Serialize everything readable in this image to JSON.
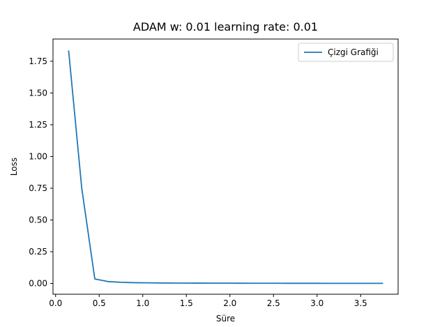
{
  "chart_data": {
    "type": "line",
    "title": "ADAM w: 0.01 learning rate: 0.01",
    "xlabel": "Süre",
    "ylabel": "Loss",
    "xlim": [
      -0.03,
      3.93
    ],
    "ylim": [
      -0.085,
      1.925
    ],
    "xticks": [
      0.0,
      0.5,
      1.0,
      1.5,
      2.0,
      2.5,
      3.0,
      3.5
    ],
    "xtick_labels": [
      "0.0",
      "0.5",
      "1.0",
      "1.5",
      "2.0",
      "2.5",
      "3.0",
      "3.5"
    ],
    "yticks": [
      0.0,
      0.25,
      0.5,
      0.75,
      1.0,
      1.25,
      1.5,
      1.75
    ],
    "ytick_labels": [
      "0.00",
      "0.25",
      "0.50",
      "0.75",
      "1.00",
      "1.25",
      "1.50",
      "1.75"
    ],
    "grid": false,
    "legend_position": "top-right",
    "series": [
      {
        "name": "Çizgi Grafiği",
        "color": "#1f77b4",
        "x": [
          0.15,
          0.3,
          0.45,
          0.6,
          0.75,
          0.9,
          1.05,
          1.2,
          1.35,
          1.5,
          1.65,
          1.8,
          1.95,
          2.1,
          2.25,
          2.4,
          2.55,
          2.7,
          2.85,
          3.0,
          3.15,
          3.3,
          3.45,
          3.6,
          3.75
        ],
        "y": [
          1.83,
          0.75,
          0.035,
          0.015,
          0.009,
          0.006,
          0.005,
          0.004,
          0.003,
          0.003,
          0.0025,
          0.002,
          0.002,
          0.0018,
          0.0016,
          0.0015,
          0.0014,
          0.0013,
          0.0012,
          0.0011,
          0.001,
          0.001,
          0.0009,
          0.0009,
          0.0008
        ]
      }
    ]
  }
}
